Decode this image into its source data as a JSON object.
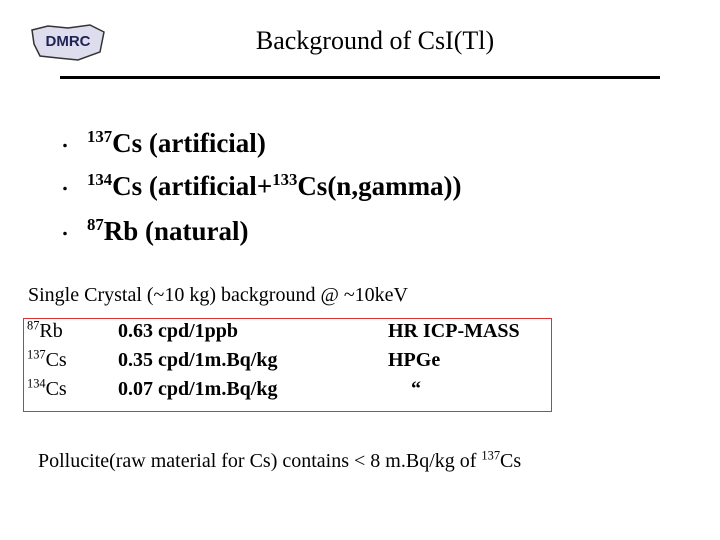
{
  "header": {
    "logo": "DMRC",
    "title": "Background of CsI(Tl)"
  },
  "bullets": [
    [
      "137",
      "Cs (artificial)"
    ],
    [
      "134",
      "Cs (artificial+",
      "133",
      "Cs(n,gamma))"
    ],
    [
      "87",
      "Rb (natural)"
    ]
  ],
  "subtitle": "Single Crystal (~10 kg) background @ ~10keV",
  "table": {
    "rows": [
      [
        "87",
        "Rb",
        "0.63 cpd/1ppb",
        "HR ICP-MASS"
      ],
      [
        "137",
        "Cs",
        "0.35 cpd/1m.Bq/kg",
        "HPGe"
      ],
      [
        "134",
        "Cs",
        "0.07 cpd/1m.Bq/kg",
        "“"
      ]
    ]
  },
  "footer": [
    "Pollucite(raw material for Cs) contains < 8 m.Bq/kg of ",
    "137",
    "Cs"
  ]
}
